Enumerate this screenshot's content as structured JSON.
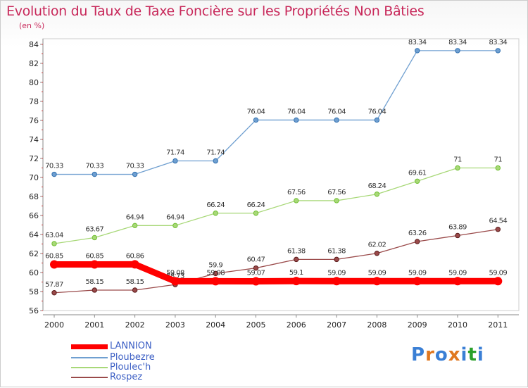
{
  "title": "Evolution du Taux de Taxe Foncière sur les Propriétés Non Bâties",
  "subtitle": "(en %)",
  "logo_text": "Proxiti",
  "chart_data": {
    "type": "line",
    "title": "Evolution du Taux de Taxe Foncière sur les Propriétés Non Bâties",
    "ylabel": "(en %)",
    "xlabel": "",
    "x": [
      "2000",
      "2001",
      "2002",
      "2003",
      "2004",
      "2005",
      "2006",
      "2007",
      "2008",
      "2009",
      "2010",
      "2011"
    ],
    "ylim": [
      56,
      84
    ],
    "yticks": [
      56,
      58,
      60,
      62,
      64,
      66,
      68,
      70,
      72,
      74,
      76,
      78,
      80,
      82,
      84
    ],
    "grid": false,
    "legend_position": "bottom-left",
    "series": [
      {
        "name": "LANNION",
        "color": "#ff0000",
        "values": [
          60.85,
          60.85,
          60.86,
          59.08,
          59.08,
          59.07,
          59.1,
          59.09,
          59.09,
          59.09,
          59.09,
          59.09
        ],
        "labels": [
          "60.85",
          "60.85",
          "60.86",
          "59.08",
          "59.08",
          "59.07",
          "59.1",
          "59.09",
          "59.09",
          "59.09",
          "59.09",
          "59.09"
        ]
      },
      {
        "name": "Ploubezre",
        "color": "#6f9fd0",
        "values": [
          70.33,
          70.33,
          70.33,
          71.74,
          71.74,
          76.04,
          76.04,
          76.04,
          76.04,
          83.34,
          83.34,
          83.34
        ],
        "labels": [
          "70.33",
          "70.33",
          "70.33",
          "71.74",
          "71.74",
          "76.04",
          "76.04",
          "76.04",
          "76.04",
          "83.34",
          "83.34",
          "83.34"
        ]
      },
      {
        "name": "Ploulec'h",
        "color": "#a8d878",
        "values": [
          63.04,
          63.67,
          64.94,
          64.94,
          66.24,
          66.24,
          67.56,
          67.56,
          68.24,
          69.61,
          71,
          71
        ],
        "labels": [
          "63.04",
          "63.67",
          "64.94",
          "64.94",
          "66.24",
          "66.24",
          "67.56",
          "67.56",
          "68.24",
          "69.61",
          "71",
          "71"
        ]
      },
      {
        "name": "Rospez",
        "color": "#9a4a4a",
        "values": [
          57.87,
          58.15,
          58.15,
          58.73,
          59.9,
          60.47,
          61.38,
          61.38,
          62.02,
          63.26,
          63.89,
          64.54
        ],
        "labels": [
          "57.87",
          "58.15",
          "58.15",
          "58.73",
          "59.9",
          "60.47",
          "61.38",
          "61.38",
          "62.02",
          "63.26",
          "63.89",
          "64.54"
        ]
      }
    ]
  }
}
